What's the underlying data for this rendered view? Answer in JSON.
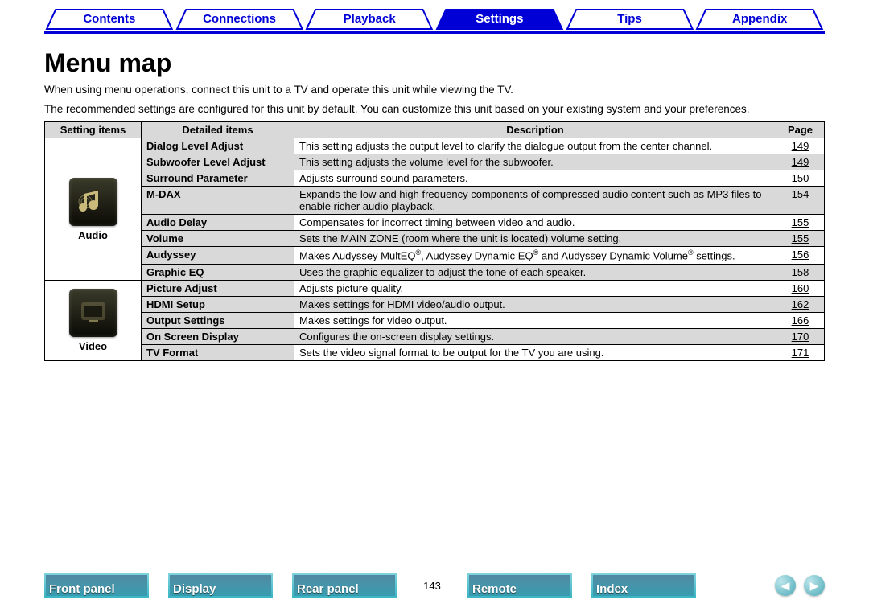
{
  "nav": {
    "tabs": [
      {
        "label": "Contents",
        "active": false
      },
      {
        "label": "Connections",
        "active": false
      },
      {
        "label": "Playback",
        "active": false
      },
      {
        "label": "Settings",
        "active": true
      },
      {
        "label": "Tips",
        "active": false
      },
      {
        "label": "Appendix",
        "active": false
      }
    ],
    "stroke_color": "#0000d6",
    "fill_inactive": "#ffffff",
    "fill_active": "#0000d6"
  },
  "page": {
    "title": "Menu map",
    "intro1": "When using menu operations, connect this unit to a TV and operate this unit while viewing the TV.",
    "intro2": "The recommended settings are configured for this unit by default. You can customize this unit based on your existing system and your preferences."
  },
  "table": {
    "headers": {
      "setting": "Setting items",
      "detailed": "Detailed items",
      "desc": "Description",
      "page": "Page"
    },
    "groups": [
      {
        "name": "Audio",
        "icon": "audio",
        "rows": [
          {
            "item": "Dialog Level Adjust",
            "desc": "This setting adjusts the output level to clarify the dialogue output from the center channel.",
            "page": "149",
            "shade": "odd"
          },
          {
            "item": "Subwoofer Level Adjust",
            "desc": "This setting adjusts the volume level for the subwoofer.",
            "page": "149",
            "shade": "even"
          },
          {
            "item": "Surround Parameter",
            "desc": "Adjusts surround sound parameters.",
            "page": "150",
            "shade": "odd"
          },
          {
            "item": "M-DAX",
            "desc": "Expands the low and high frequency components of compressed audio content such as MP3 files to enable richer audio playback.",
            "page": "154",
            "shade": "even"
          },
          {
            "item": "Audio Delay",
            "desc": "Compensates for incorrect timing between video and audio.",
            "page": "155",
            "shade": "odd"
          },
          {
            "item": "Volume",
            "desc": "Sets the MAIN ZONE (room where the unit is located) volume setting.",
            "page": "155",
            "shade": "even"
          },
          {
            "item": "Audyssey",
            "desc_html": "Makes Audyssey MultEQ®, Audyssey Dynamic EQ® and Audyssey Dynamic Volume® settings.",
            "page": "156",
            "shade": "odd"
          },
          {
            "item": "Graphic EQ",
            "desc": "Uses the graphic equalizer to adjust the tone of each speaker.",
            "page": "158",
            "shade": "even"
          }
        ]
      },
      {
        "name": "Video",
        "icon": "video",
        "rows": [
          {
            "item": "Picture Adjust",
            "desc": "Adjusts picture quality.",
            "page": "160",
            "shade": "odd"
          },
          {
            "item": "HDMI Setup",
            "desc": "Makes settings for HDMI video/audio output.",
            "page": "162",
            "shade": "even"
          },
          {
            "item": "Output Settings",
            "desc": "Makes settings for video output.",
            "page": "166",
            "shade": "odd"
          },
          {
            "item": "On Screen Display",
            "desc": "Configures the on-screen display settings.",
            "page": "170",
            "shade": "even"
          },
          {
            "item": "TV Format",
            "desc": "Sets the video signal format to be output for the TV you are using.",
            "page": "171",
            "shade": "odd"
          }
        ]
      }
    ]
  },
  "footer": {
    "thumbs": [
      "Front panel",
      "Display",
      "Rear panel"
    ],
    "page_number": "143",
    "thumbs2": [
      "Remote",
      "Index"
    ]
  }
}
